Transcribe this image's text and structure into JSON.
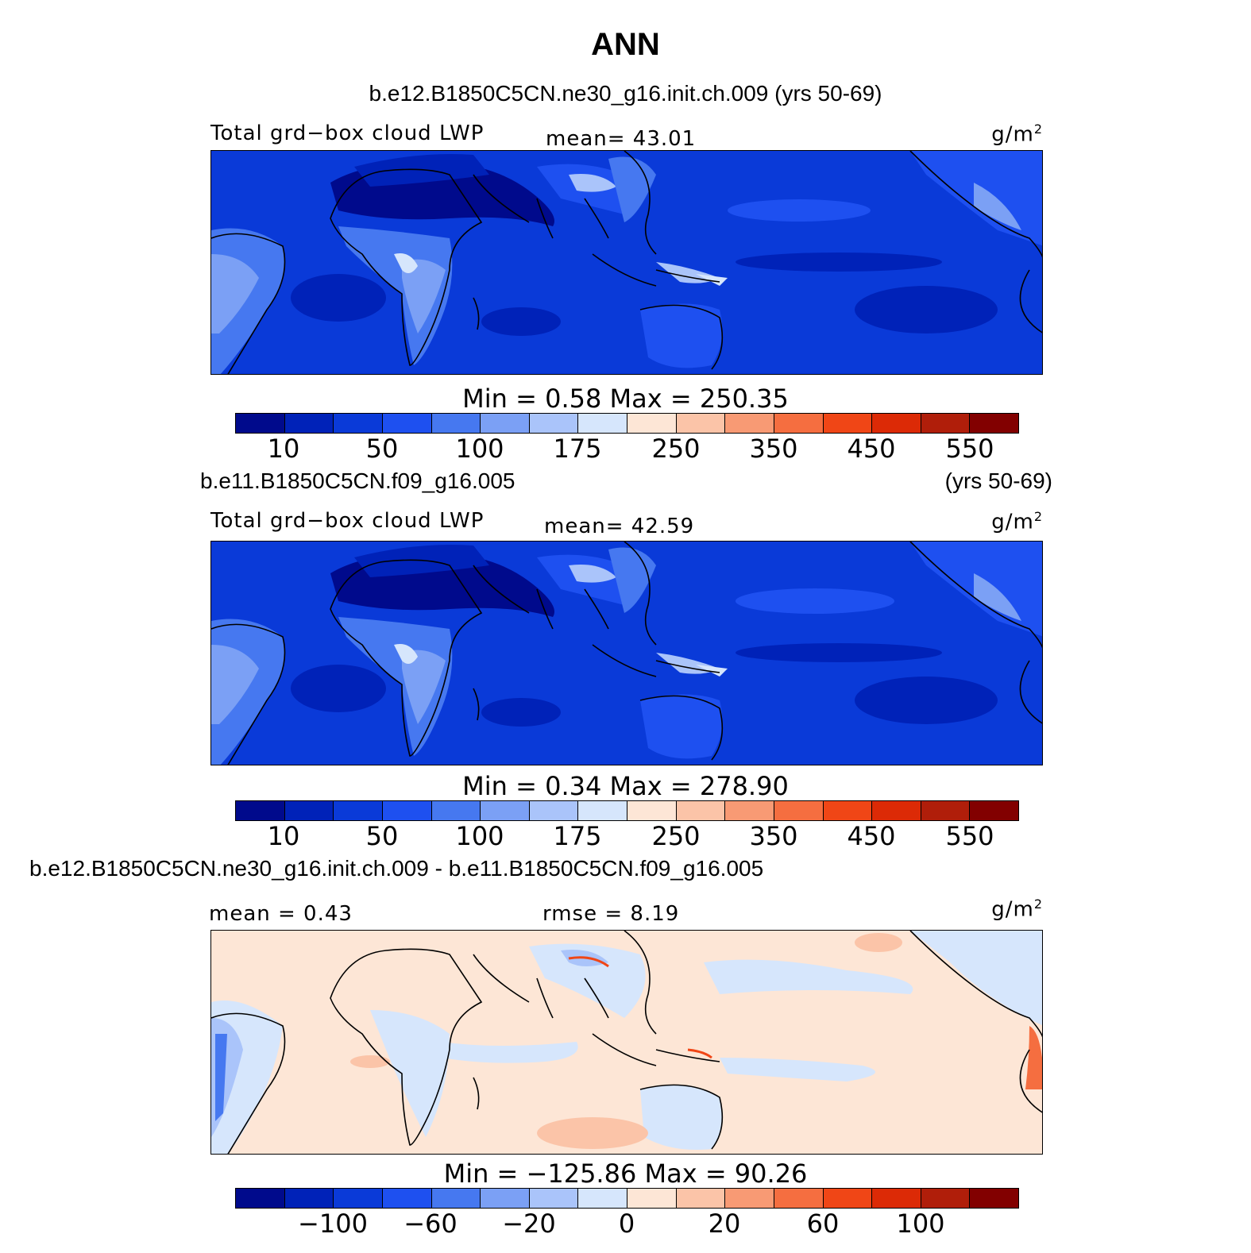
{
  "title": "ANN",
  "panel1": {
    "subtitle": "b.e12.B1850C5CN.ne30_g16.init.ch.009 (yrs 50-69)",
    "left_label": "Total grd−box cloud LWP",
    "center_label": "mean=   43.01",
    "unit": "g/m",
    "unit_sup": "2",
    "minmax": "Min =    0.58  Max = 250.35",
    "ticks": [
      "10",
      "50",
      "100",
      "175",
      "250",
      "350",
      "450",
      "550"
    ]
  },
  "panel2": {
    "subtitle_left": "b.e11.B1850C5CN.f09_g16.005",
    "subtitle_right": "(yrs 50-69)",
    "left_label": "Total grd−box cloud LWP",
    "center_label": "mean=  42.59",
    "unit": "g/m",
    "unit_sup": "2",
    "minmax": "Min =    0.34  Max = 278.90",
    "ticks": [
      "10",
      "50",
      "100",
      "175",
      "250",
      "350",
      "450",
      "550"
    ]
  },
  "panel3": {
    "subtitle": "b.e12.B1850C5CN.ne30_g16.init.ch.009 - b.e11.B1850C5CN.f09_g16.005",
    "left_label": "mean =    0.43",
    "center_label": "rmse =    8.19",
    "unit": "g/m",
    "unit_sup": "2",
    "minmax": "Min = −125.86  Max =   90.26",
    "ticks": [
      "−100",
      "−60",
      "−20",
      "0",
      "20",
      "60",
      "100"
    ]
  },
  "colors": {
    "palette": [
      "#000a8c",
      "#0022b8",
      "#0a3ad8",
      "#1e50f0",
      "#4678f0",
      "#7ba0f5",
      "#aac4fa",
      "#d6e6fc",
      "#fde6d6",
      "#fbc4a8",
      "#f89a74",
      "#f56e40",
      "#f04616",
      "#dc2a06",
      "#b01e0a",
      "#820000"
    ],
    "map_background": "#0a3ad8",
    "diff_background": "#fde6d6"
  }
}
